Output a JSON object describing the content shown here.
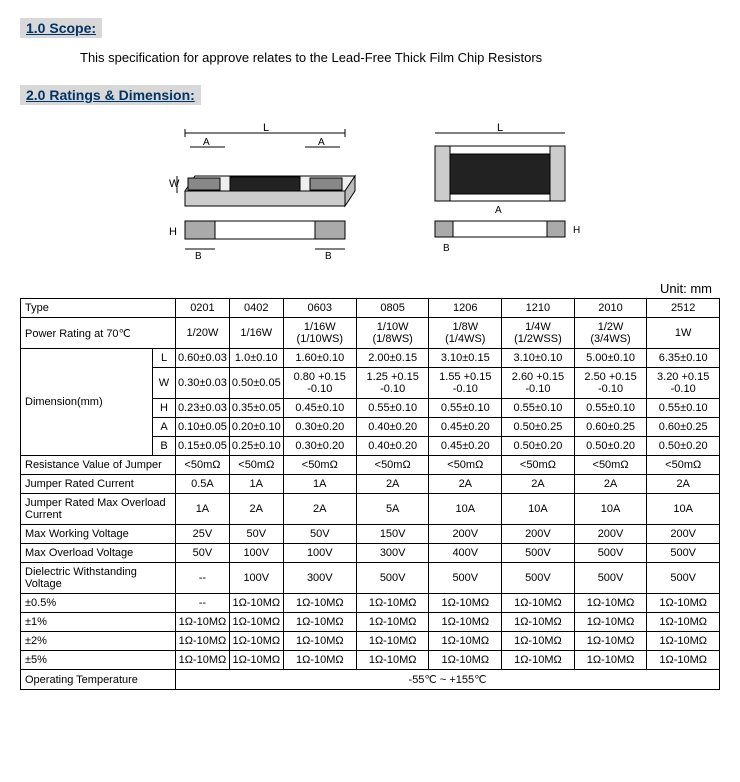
{
  "section1": {
    "header": "1.0 Scope:",
    "text": "This specification for approve relates to the Lead-Free Thick Film Chip Resistors"
  },
  "section2": {
    "header": "2.0 Ratings & Dimension:",
    "unit": "Unit: mm"
  },
  "diagram": {
    "labels": {
      "L": "L",
      "A": "A",
      "W": "W",
      "H": "H",
      "B": "B"
    }
  },
  "table": {
    "typeLabel": "Type",
    "types": [
      "0201",
      "0402",
      "0603",
      "0805",
      "1206",
      "1210",
      "2010",
      "2512"
    ],
    "powerLabel": "Power Rating at 70℃",
    "power": [
      "1/20W",
      "1/16W",
      "1/16W (1/10WS)",
      "1/10W (1/8WS)",
      "1/8W (1/4WS)",
      "1/4W (1/2WSS)",
      "1/2W (3/4WS)",
      "1W"
    ],
    "dimLabel": "Dimension(mm)",
    "dims": {
      "L": [
        "0.60±0.03",
        "1.0±0.10",
        "1.60±0.10",
        "2.00±0.15",
        "3.10±0.15",
        "3.10±0.10",
        "5.00±0.10",
        "6.35±0.10"
      ],
      "W": [
        "0.30±0.03",
        "0.50±0.05",
        "0.80 +0.15 -0.10",
        "1.25 +0.15 -0.10",
        "1.55 +0.15 -0.10",
        "2.60 +0.15 -0.10",
        "2.50 +0.15 -0.10",
        "3.20 +0.15 -0.10"
      ],
      "H": [
        "0.23±0.03",
        "0.35±0.05",
        "0.45±0.10",
        "0.55±0.10",
        "0.55±0.10",
        "0.55±0.10",
        "0.55±0.10",
        "0.55±0.10"
      ],
      "A": [
        "0.10±0.05",
        "0.20±0.10",
        "0.30±0.20",
        "0.40±0.20",
        "0.45±0.20",
        "0.50±0.25",
        "0.60±0.25",
        "0.60±0.25"
      ],
      "B": [
        "0.15±0.05",
        "0.25±0.10",
        "0.30±0.20",
        "0.40±0.20",
        "0.45±0.20",
        "0.50±0.20",
        "0.50±0.20",
        "0.50±0.20"
      ]
    },
    "rows": [
      {
        "label": "Resistance Value of Jumper",
        "cells": [
          "<50mΩ",
          "<50mΩ",
          "<50mΩ",
          "<50mΩ",
          "<50mΩ",
          "<50mΩ",
          "<50mΩ",
          "<50mΩ"
        ]
      },
      {
        "label": "Jumper Rated Current",
        "cells": [
          "0.5A",
          "1A",
          "1A",
          "2A",
          "2A",
          "2A",
          "2A",
          "2A"
        ]
      },
      {
        "label": "Jumper Rated Max Overload Current",
        "cells": [
          "1A",
          "2A",
          "2A",
          "5A",
          "10A",
          "10A",
          "10A",
          "10A"
        ]
      },
      {
        "label": "Max Working Voltage",
        "cells": [
          "25V",
          "50V",
          "50V",
          "150V",
          "200V",
          "200V",
          "200V",
          "200V"
        ]
      },
      {
        "label": "Max Overload Voltage",
        "cells": [
          "50V",
          "100V",
          "100V",
          "300V",
          "400V",
          "500V",
          "500V",
          "500V"
        ]
      },
      {
        "label": "Dielectric Withstanding Voltage",
        "cells": [
          "--",
          "100V",
          "300V",
          "500V",
          "500V",
          "500V",
          "500V",
          "500V"
        ]
      },
      {
        "label": "±0.5%",
        "cells": [
          "--",
          "1Ω-10MΩ",
          "1Ω-10MΩ",
          "1Ω-10MΩ",
          "1Ω-10MΩ",
          "1Ω-10MΩ",
          "1Ω-10MΩ",
          "1Ω-10MΩ"
        ]
      },
      {
        "label": "±1%",
        "cells": [
          "1Ω-10MΩ",
          "1Ω-10MΩ",
          "1Ω-10MΩ",
          "1Ω-10MΩ",
          "1Ω-10MΩ",
          "1Ω-10MΩ",
          "1Ω-10MΩ",
          "1Ω-10MΩ"
        ]
      },
      {
        "label": "±2%",
        "cells": [
          "1Ω-10MΩ",
          "1Ω-10MΩ",
          "1Ω-10MΩ",
          "1Ω-10MΩ",
          "1Ω-10MΩ",
          "1Ω-10MΩ",
          "1Ω-10MΩ",
          "1Ω-10MΩ"
        ]
      },
      {
        "label": "±5%",
        "cells": [
          "1Ω-10MΩ",
          "1Ω-10MΩ",
          "1Ω-10MΩ",
          "1Ω-10MΩ",
          "1Ω-10MΩ",
          "1Ω-10MΩ",
          "1Ω-10MΩ",
          "1Ω-10MΩ"
        ]
      }
    ],
    "opTempLabel": "Operating Temperature",
    "opTemp": "-55℃ ~ +155℃"
  },
  "colors": {
    "headerBg": "#d8d8d8",
    "headerText": "#003366",
    "border": "#000000"
  }
}
